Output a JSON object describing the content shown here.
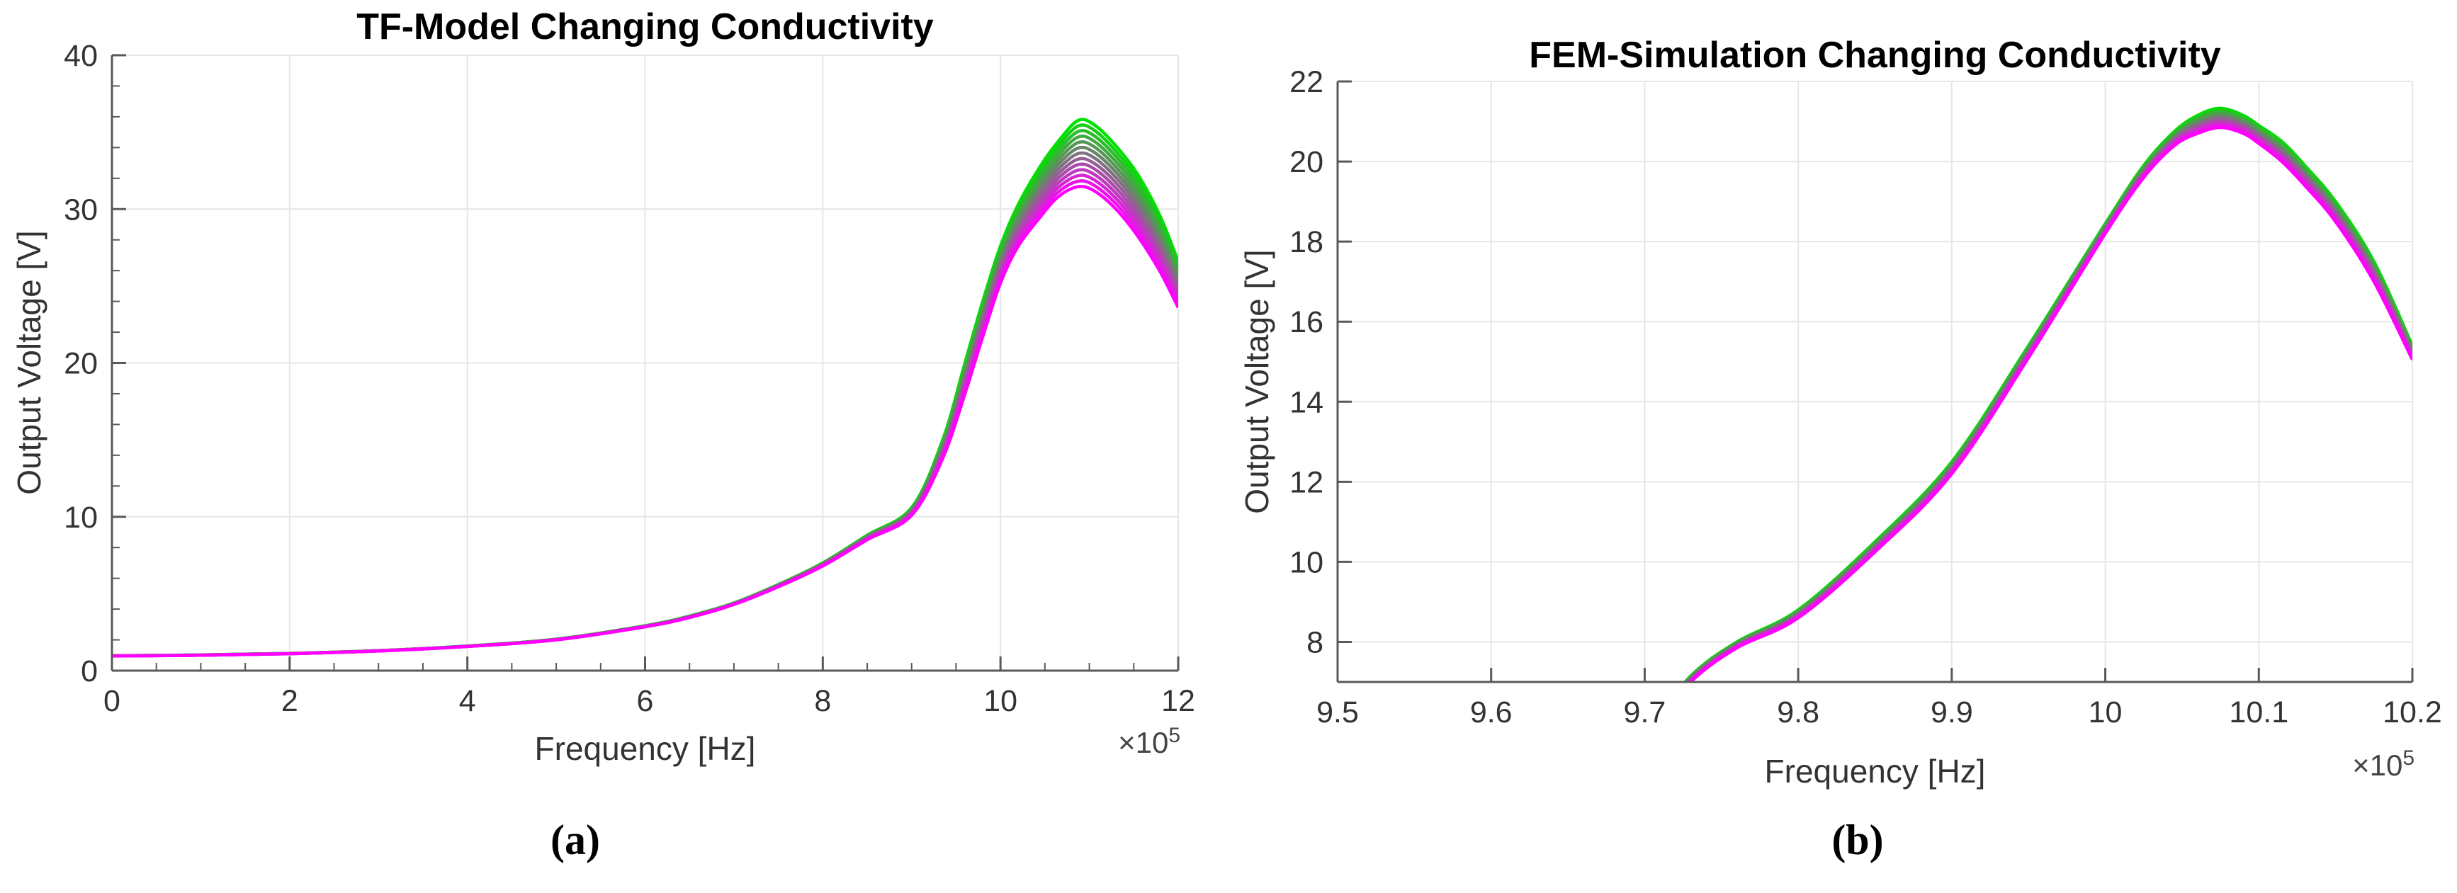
{
  "page": {
    "background": "#ffffff"
  },
  "captions": {
    "a": "(a)",
    "b": "(b)"
  },
  "chart_data": [
    {
      "id": "tf-model",
      "type": "line",
      "title": "TF-Model Changing Conductivity",
      "xlabel": "Frequency [Hz]",
      "ylabel": "Output Voltage [V]",
      "x_scale": {
        "prefix": "×10",
        "exp": "5"
      },
      "xlim": [
        0,
        12
      ],
      "ylim": [
        0,
        40
      ],
      "xticks": [
        0,
        2,
        4,
        6,
        8,
        10,
        12
      ],
      "xtick_labels": [
        "0",
        "2",
        "4",
        "6",
        "8",
        "10",
        "12"
      ],
      "yticks": [
        0,
        10,
        20,
        30,
        40
      ],
      "ytick_labels": [
        "0",
        "10",
        "20",
        "30",
        "40"
      ],
      "x_minor_step": 0.5,
      "y_minor_step": 2,
      "grid": true,
      "legend": null,
      "n_curves": 13,
      "color_start": "#00e200",
      "color_end": "#ff00ff",
      "series_description": "Family of resonance curves for conductivity sweep; outer curve green, inner curve magenta; all curves coincide below ~9e5 Hz",
      "x_points_1e5Hz": [
        0,
        1,
        2,
        3,
        4,
        5,
        6,
        6.5,
        7,
        7.5,
        8,
        8.5,
        9,
        9.35,
        9.6,
        9.8,
        10,
        10.2,
        10.45,
        10.65,
        10.87,
        11.05,
        11.3,
        11.55,
        11.8,
        12
      ],
      "envelope_green_V": [
        0.97,
        1.02,
        1.12,
        1.3,
        1.6,
        2.05,
        2.92,
        3.55,
        4.4,
        5.6,
        7.0,
        8.8,
        10.6,
        15.0,
        20.0,
        24.0,
        27.6,
        30.3,
        32.8,
        34.4,
        35.75,
        35.5,
        34.1,
        32.2,
        29.5,
        26.6
      ],
      "envelope_magenta_V": [
        0.95,
        1.0,
        1.1,
        1.28,
        1.57,
        2.0,
        2.85,
        3.45,
        4.3,
        5.45,
        6.8,
        8.5,
        10.1,
        13.8,
        18.0,
        21.7,
        25.2,
        27.6,
        29.5,
        30.8,
        31.45,
        31.2,
        30.0,
        28.2,
        25.9,
        23.6
      ],
      "peak": {
        "frequency_1e5Hz": 10.87,
        "green_V": 35.75,
        "magenta_V": 31.45
      }
    },
    {
      "id": "fem-simulation",
      "type": "line",
      "title": "FEM-Simulation Changing Conductivity",
      "xlabel": "Frequency [Hz]",
      "ylabel": "Output Voltage [V]",
      "x_scale": {
        "prefix": "×10",
        "exp": "5"
      },
      "xlim": [
        9.5,
        10.2
      ],
      "ylim": [
        7,
        22
      ],
      "xticks": [
        9.5,
        9.6,
        9.7,
        9.8,
        9.9,
        10,
        10.1,
        10.2
      ],
      "xtick_labels": [
        "9.5",
        "9.6",
        "9.7",
        "9.8",
        "9.9",
        "10",
        "10.1",
        "10.2"
      ],
      "yticks": [
        8,
        10,
        12,
        14,
        16,
        18,
        20,
        22
      ],
      "ytick_labels": [
        "8",
        "10",
        "12",
        "14",
        "16",
        "18",
        "20",
        "22"
      ],
      "x_minor_step": null,
      "y_minor_step": null,
      "grid": true,
      "legend": null,
      "n_curves": 13,
      "color_start": "#00e200",
      "color_end": "#ff00ff",
      "series_description": "Same conductivity sweep from FEM simulation; tight bundle, green outermost, magenta innermost; curves enter plot at ~9.73e5 Hz",
      "x_points_1e5Hz": [
        9.705,
        9.73,
        9.76,
        9.8,
        9.85,
        9.9,
        9.95,
        10.0,
        10.025,
        10.045,
        10.06,
        10.075,
        10.09,
        10.1,
        10.115,
        10.13,
        10.15,
        10.175,
        10.2
      ],
      "envelope_green_V": [
        5.9,
        7.15,
        8.0,
        8.8,
        10.5,
        12.5,
        15.4,
        18.45,
        19.9,
        20.75,
        21.15,
        21.33,
        21.15,
        20.9,
        20.5,
        19.9,
        19.0,
        17.5,
        15.4
      ],
      "envelope_magenta_V": [
        5.8,
        7.0,
        7.85,
        8.6,
        10.25,
        12.2,
        15.1,
        18.2,
        19.6,
        20.4,
        20.7,
        20.85,
        20.7,
        20.45,
        20.0,
        19.4,
        18.5,
        17.0,
        15.05
      ],
      "peak": {
        "frequency_1e5Hz": 10.075,
        "green_V": 21.33,
        "magenta_V": 20.85
      }
    }
  ]
}
